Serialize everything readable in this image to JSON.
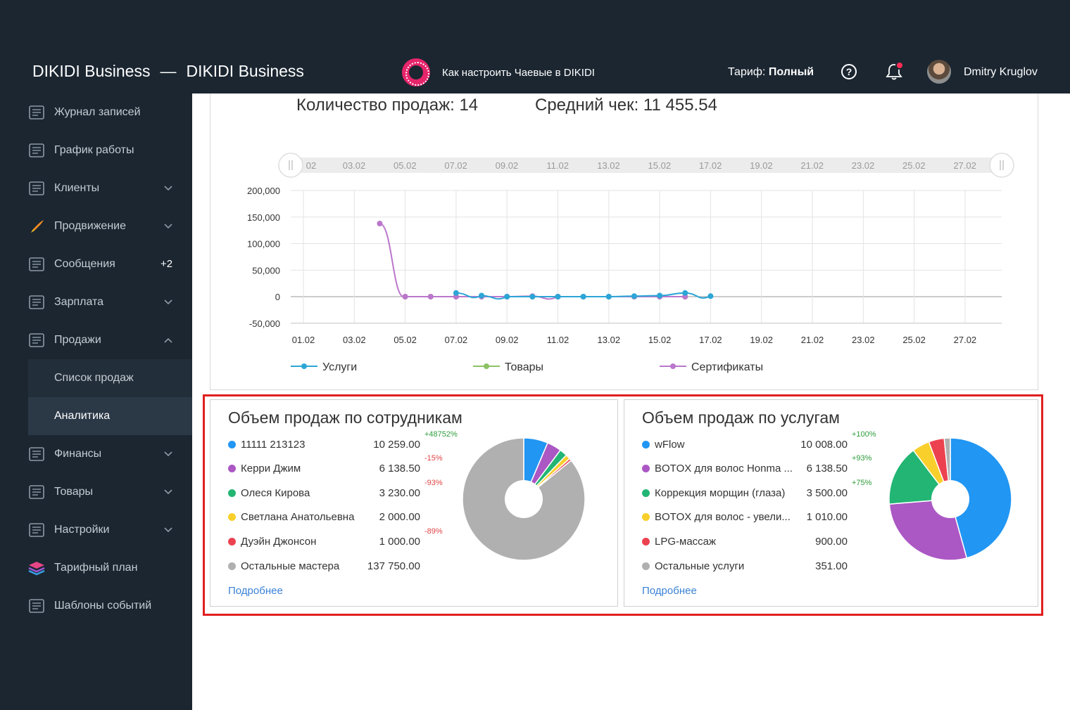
{
  "header": {
    "brand": "DIKIDI Business",
    "separator": "—",
    "brand2": "DIKIDI Business",
    "promo": "Как настроить Чаевые в DIKIDI",
    "tariff_label": "Тариф:",
    "tariff_value": "Полный",
    "user": "Dmitry Kruglov"
  },
  "sidebar": {
    "items": [
      {
        "label": "Журнал записей",
        "icon": "journal-icon"
      },
      {
        "label": "График работы",
        "icon": "calendar-icon"
      },
      {
        "label": "Клиенты",
        "icon": "clients-icon"
      },
      {
        "label": "Продвижение",
        "icon": "rocket-icon"
      },
      {
        "label": "Сообщения",
        "icon": "messages-icon",
        "badge": "+2"
      },
      {
        "label": "Зарплата",
        "icon": "calculator-icon"
      },
      {
        "label": "Продажи",
        "icon": "receipt-icon"
      },
      {
        "label": "Финансы",
        "icon": "coins-icon"
      },
      {
        "label": "Товары",
        "icon": "cart-icon"
      },
      {
        "label": "Настройки",
        "icon": "gear-icon"
      },
      {
        "label": "Тарифный план",
        "icon": "layers-icon"
      },
      {
        "label": "Шаблоны событий",
        "icon": "template-icon"
      }
    ],
    "sub_items": [
      {
        "label": "Список продаж"
      },
      {
        "label": "Аналитика"
      }
    ]
  },
  "kpis": {
    "sales_count": "Количество продаж: 14",
    "avg_check": "Средний чек: 11 455.54"
  },
  "chart_data": {
    "type": "line",
    "navigator_labels": [
      "02",
      "03.02",
      "05.02",
      "07.02",
      "09.02",
      "11.02",
      "13.02",
      "15.02",
      "17.02",
      "19.02",
      "21.02",
      "23.02",
      "25.02",
      "27.02"
    ],
    "x_labels": [
      "01.02",
      "03.02",
      "05.02",
      "07.02",
      "09.02",
      "11.02",
      "13.02",
      "15.02",
      "17.02",
      "19.02",
      "21.02",
      "23.02",
      "25.02",
      "27.02"
    ],
    "y_ticks": [
      "200,000",
      "150,000",
      "100,000",
      "50,000",
      "0",
      "-50,000"
    ],
    "ylim": [
      -50000,
      200000
    ],
    "series": [
      {
        "name": "Услуги",
        "color": "#2ca6d6",
        "points": [
          [
            7,
            7000
          ],
          [
            8,
            2000
          ],
          [
            9,
            0
          ],
          [
            10,
            0
          ],
          [
            11,
            0
          ],
          [
            12,
            0
          ],
          [
            13,
            0
          ],
          [
            14,
            1000
          ],
          [
            15,
            2000
          ],
          [
            16,
            7000
          ],
          [
            17,
            1000
          ]
        ]
      },
      {
        "name": "Товары",
        "color": "#8cc264",
        "points": [
          [
            5,
            0
          ],
          [
            6,
            0
          ],
          [
            7,
            0
          ],
          [
            8,
            0
          ],
          [
            9,
            0
          ],
          [
            10,
            0
          ],
          [
            11,
            0
          ],
          [
            12,
            0
          ],
          [
            13,
            0
          ],
          [
            14,
            0
          ],
          [
            15,
            0
          ],
          [
            16,
            0
          ]
        ]
      },
      {
        "name": "Сертификаты",
        "color": "#bb77cc",
        "points": [
          [
            4,
            137750
          ],
          [
            5,
            0
          ],
          [
            6,
            0
          ],
          [
            7,
            0
          ],
          [
            8,
            0
          ],
          [
            9,
            0
          ],
          [
            10,
            1000
          ],
          [
            11,
            0
          ],
          [
            12,
            0
          ],
          [
            13,
            0
          ],
          [
            14,
            0
          ],
          [
            15,
            0
          ],
          [
            16,
            0
          ]
        ]
      }
    ]
  },
  "staff": {
    "title": "Объем продаж по сотрудникам",
    "more": "Подробнее",
    "rows": [
      {
        "name": "11111 213123",
        "value": "10 259.00",
        "pct": "+48752%",
        "dir": "up",
        "color": "#2196f3",
        "num": 10259
      },
      {
        "name": "Керри Джим",
        "value": "6 138.50",
        "pct": "-15%",
        "dir": "down",
        "color": "#ab57c4",
        "num": 6138.5
      },
      {
        "name": "Олеся Кирова",
        "value": "3 230.00",
        "pct": "-93%",
        "dir": "down",
        "color": "#22b573",
        "num": 3230
      },
      {
        "name": "Светлана Анатольевна",
        "value": "2 000.00",
        "pct": "",
        "dir": "",
        "color": "#f9cf2b",
        "num": 2000
      },
      {
        "name": "Дуэйн Джонсон",
        "value": "1 000.00",
        "pct": "-89%",
        "dir": "down",
        "color": "#ec4250",
        "num": 1000
      },
      {
        "name": "Остальные мастера",
        "value": "137 750.00",
        "pct": "",
        "dir": "",
        "color": "#b0b0b0",
        "num": 137750
      }
    ]
  },
  "services": {
    "title": "Объем продаж по услугам",
    "more": "Подробнее",
    "rows": [
      {
        "name": "wFlow",
        "value": "10 008.00",
        "pct": "+100%",
        "dir": "up",
        "color": "#2196f3",
        "num": 10008
      },
      {
        "name": "BOTOX для волос Honma ...",
        "value": "6 138.50",
        "pct": "+93%",
        "dir": "up",
        "color": "#ab57c4",
        "num": 6138.5
      },
      {
        "name": "Коррекция морщин (глаза)",
        "value": "3 500.00",
        "pct": "+75%",
        "dir": "up",
        "color": "#22b573",
        "num": 3500
      },
      {
        "name": "BOTOX для волос - увели...",
        "value": "1 010.00",
        "pct": "",
        "dir": "",
        "color": "#f9cf2b",
        "num": 1010
      },
      {
        "name": "LPG-массаж",
        "value": "900.00",
        "pct": "",
        "dir": "",
        "color": "#ec4250",
        "num": 900
      },
      {
        "name": "Остальные услуги",
        "value": "351.00",
        "pct": "",
        "dir": "",
        "color": "#b0b0b0",
        "num": 351
      }
    ]
  }
}
